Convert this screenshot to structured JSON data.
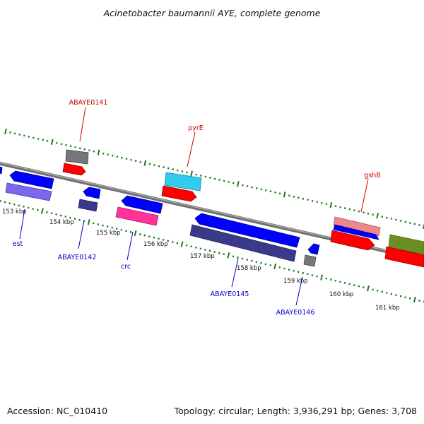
{
  "title": "Acinetobacter baumannii AYE, complete genome",
  "footer": {
    "accession": "Accession: NC_010410",
    "summary": "Topology: circular; Length: 3,936,291 bp; Genes: 3,708"
  },
  "ticks": [
    "153 kbp",
    "154 kbp",
    "155 kbp",
    "156 kbp",
    "157 kbp",
    "158 kbp",
    "159 kbp",
    "160 kbp",
    "161 kbp"
  ],
  "labels": {
    "forward": [
      "ABAYE0141",
      "pyrE",
      "gshB"
    ],
    "reverse": [
      "est",
      "ABAYE0142",
      "crc",
      "ABAYE0145",
      "ABAYE0146"
    ]
  },
  "colors": {
    "forward_label": "#cc0000",
    "reverse_label": "#0000cc",
    "backbone": "#888888",
    "tick": "#1a7a1a",
    "cds_forward": "#ff0000",
    "cds_reverse": "#0000ff",
    "cog_gray": "#777777",
    "cog_cyan": "#33ccee",
    "cog_pink": "#ff3399",
    "cog_salmon": "#ee8888",
    "cog_purple": "#6a5acd",
    "cog_navy": "#3a3a8a",
    "cog_olive": "#6b8e23"
  }
}
